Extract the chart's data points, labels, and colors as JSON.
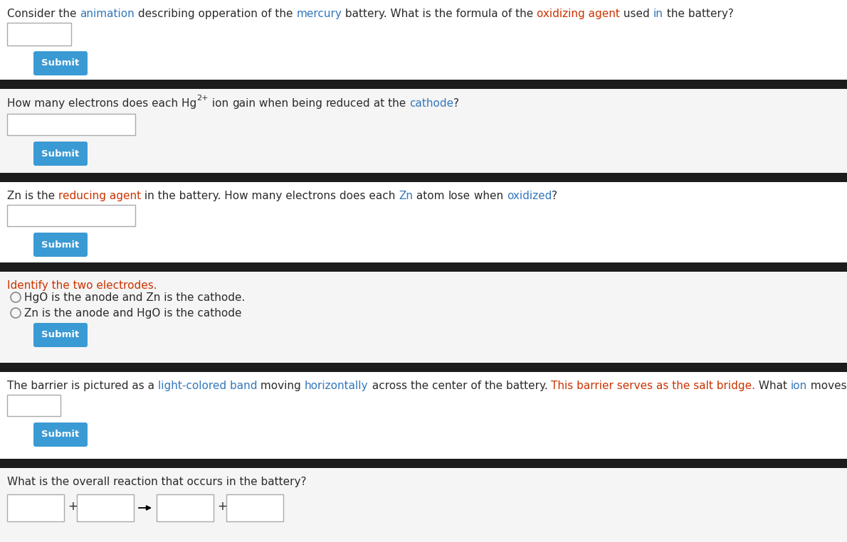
{
  "bg_color": "#f0f0f0",
  "white_bg": "#ffffff",
  "dark_bar_color": "#1c1c1c",
  "red_color": "#cc3300",
  "blue_color": "#3377bb",
  "dark_color": "#2b2b2b",
  "submit_color": "#3a9ad4",
  "submit_text_color": "#ffffff",
  "border_color": "#aaaaaa",
  "section_bg": "#f5f5f5",
  "q1_parts": [
    [
      "Consider the ",
      "#2b2b2b"
    ],
    [
      "animation",
      "#3377bb"
    ],
    [
      " describing opperation of the ",
      "#2b2b2b"
    ],
    [
      "mercury",
      "#3377bb"
    ],
    [
      " battery. What is the formula of the ",
      "#2b2b2b"
    ],
    [
      "oxidizing agent",
      "#cc3300"
    ],
    [
      " used ",
      "#2b2b2b"
    ],
    [
      "in",
      "#3377bb"
    ],
    [
      " the battery?",
      "#2b2b2b"
    ]
  ],
  "q2_before_sup": "How many electrons does each Hg",
  "q2_sup": "2+",
  "q2_after_sup_parts": [
    [
      " ion ",
      "#2b2b2b"
    ],
    [
      "gain",
      "#2b2b2b"
    ],
    [
      " when being ",
      "#2b2b2b"
    ],
    [
      "reduced",
      "#2b2b2b"
    ],
    [
      " at the ",
      "#2b2b2b"
    ],
    [
      "cathode",
      "#3377bb"
    ],
    [
      "?",
      "#2b2b2b"
    ]
  ],
  "q3_parts": [
    [
      "Zn is the ",
      "#2b2b2b"
    ],
    [
      "reducing agent",
      "#cc3300"
    ],
    [
      " in the battery. How many electrons does each ",
      "#2b2b2b"
    ],
    [
      "Zn",
      "#3377bb"
    ],
    [
      " atom ",
      "#2b2b2b"
    ],
    [
      "lose",
      "#2b2b2b"
    ],
    [
      " when ",
      "#2b2b2b"
    ],
    [
      "oxidized",
      "#3377bb"
    ],
    [
      "?",
      "#2b2b2b"
    ]
  ],
  "q4_label": "Identify the two electrodes.",
  "q4_label_color": "#cc3300",
  "q4_options": [
    "HgO is the anode and Zn is the cathode.",
    "Zn is the anode and HgO is the cathode"
  ],
  "q5_parts": [
    [
      "The barrier is pictured as a ",
      "#2b2b2b"
    ],
    [
      "light-colored band",
      "#3377bb"
    ],
    [
      " moving ",
      "#2b2b2b"
    ],
    [
      "horizontally",
      "#3377bb"
    ],
    [
      " across the center of the battery. ",
      "#2b2b2b"
    ],
    [
      "This barrier serves as the salt bridge.",
      "#cc3300"
    ],
    [
      " What ",
      "#2b2b2b"
    ],
    [
      "ion",
      "#3377bb"
    ],
    [
      " moves across the salt bridge?",
      "#2b2b2b"
    ]
  ],
  "q6_label": "What is the overall reaction that occurs in the battery?",
  "q6_label_color": "#2b2b2b",
  "font_size": 11.0,
  "sup_font_size": 8.0,
  "submit_font_size": 9.5,
  "submit_text": "Submit"
}
